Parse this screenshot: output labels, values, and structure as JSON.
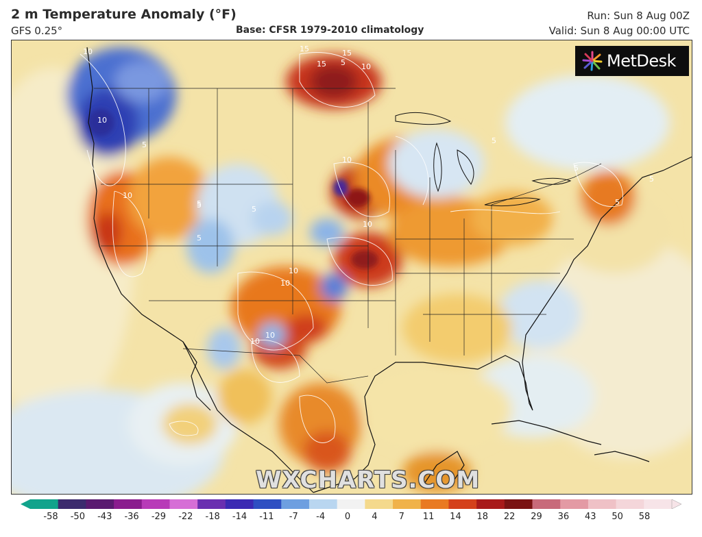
{
  "header": {
    "title": "2 m Temperature Anomaly (°F)",
    "model": "GFS 0.25°",
    "base": "Base: CFSR 1979-2010 climatology",
    "run": "Run: Sun 8 Aug 00Z",
    "valid": "Valid: Sun 8 Aug 00:00 UTC"
  },
  "logo": {
    "text": "MetDesk",
    "icon": "metdesk-burst-icon"
  },
  "watermark": "WXCHARTS.COM",
  "contour_labels": [
    "10",
    "15",
    "15",
    "15",
    "5",
    "10",
    "10",
    "10",
    "10",
    "10",
    "5",
    "5",
    "5",
    "5",
    "5",
    "5",
    "10",
    "10",
    "10",
    "10",
    "5",
    "5",
    "5"
  ],
  "colorbar": {
    "ticks": [
      "-58",
      "-50",
      "-43",
      "-36",
      "-29",
      "-22",
      "-18",
      "-14",
      "-11",
      "-7",
      "-4",
      "0",
      "4",
      "7",
      "11",
      "14",
      "18",
      "22",
      "29",
      "36",
      "43",
      "50",
      "58"
    ],
    "colors": [
      "#12a38c",
      "#3c2b6e",
      "#5a1a70",
      "#8a1c8e",
      "#b83ab8",
      "#d66fd6",
      "#6a2fb0",
      "#3b2ab3",
      "#2e4fc2",
      "#6e9fe0",
      "#b9d6f0",
      "#f2f2f2",
      "#f4d98c",
      "#f0b24a",
      "#e97a22",
      "#d4411b",
      "#a81a1a",
      "#7a1313",
      "#c86a7a",
      "#e39aa4",
      "#efc1c6",
      "#f4d6da",
      "#f7e4e8"
    ]
  }
}
